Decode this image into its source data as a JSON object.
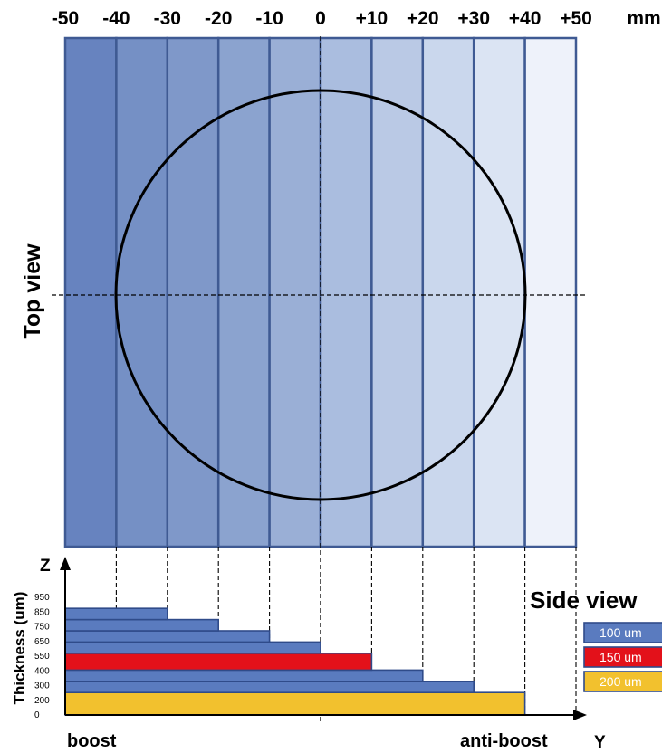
{
  "top_axis": {
    "ticks": [
      "-50",
      "-40",
      "-30",
      "-20",
      "-10",
      "0",
      "+10",
      "+20",
      "+30",
      "+40",
      "+50"
    ],
    "unit": "mm"
  },
  "top_view": {
    "title": "Top view",
    "strip_colors": [
      "#6783bf",
      "#7590c5",
      "#7f98c9",
      "#8ba3cf",
      "#9aafd6",
      "#aabddf",
      "#bac9e5",
      "#cad7ed",
      "#dbe4f3",
      "#eef2fa"
    ]
  },
  "side_view": {
    "title": "Side view",
    "z_axis_label": "Z",
    "y_axis_label": "Y",
    "thickness_label": "Thickness (um)",
    "thickness_ticks": [
      "950",
      "850",
      "750",
      "650",
      "550",
      "400",
      "300",
      "200",
      "0"
    ],
    "left_label": "boost",
    "right_label": "anti-boost",
    "legend": [
      {
        "label": "100 um",
        "color": "#5a7bbf"
      },
      {
        "label": "150 um",
        "color": "#e3111a"
      },
      {
        "label": "200 um",
        "color": "#f2c12e"
      }
    ],
    "layers": [
      {
        "thickness_um": 200,
        "color": "#f2c12e",
        "x_range_mm": [
          -50,
          40
        ]
      },
      {
        "thickness_um": 100,
        "color": "#5a7bbf",
        "x_range_mm": [
          -50,
          30
        ]
      },
      {
        "thickness_um": 100,
        "color": "#5a7bbf",
        "x_range_mm": [
          -50,
          20
        ]
      },
      {
        "thickness_um": 150,
        "color": "#e3111a",
        "x_range_mm": [
          -50,
          10
        ]
      },
      {
        "thickness_um": 100,
        "color": "#5a7bbf",
        "x_range_mm": [
          -50,
          0
        ]
      },
      {
        "thickness_um": 100,
        "color": "#5a7bbf",
        "x_range_mm": [
          -50,
          -10
        ]
      },
      {
        "thickness_um": 100,
        "color": "#5a7bbf",
        "x_range_mm": [
          -50,
          -20
        ]
      },
      {
        "thickness_um": 100,
        "color": "#5a7bbf",
        "x_range_mm": [
          -50,
          -30
        ]
      }
    ]
  }
}
